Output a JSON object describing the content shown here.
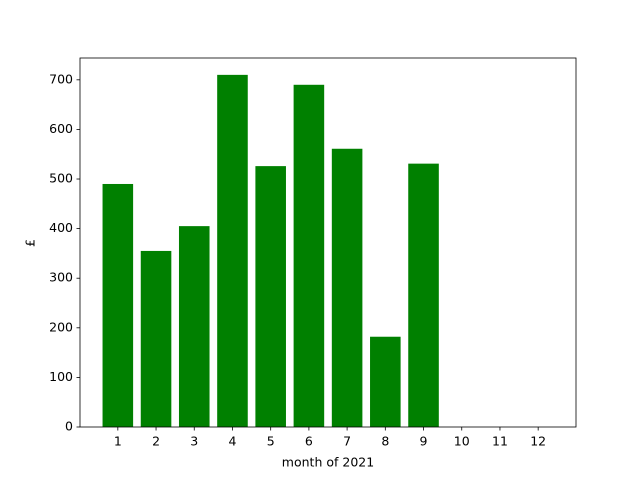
{
  "chart_data": {
    "type": "bar",
    "xlabel": "month of 2021",
    "ylabel": "£",
    "x": [
      1,
      2,
      3,
      4,
      5,
      6,
      7,
      8,
      9,
      10,
      11,
      12
    ],
    "values": [
      490,
      355,
      405,
      710,
      526,
      690,
      561,
      182,
      531,
      0,
      0,
      0
    ],
    "color": "#008000",
    "xlim": [
      0.01,
      12.99
    ],
    "xticks": [
      1,
      2,
      3,
      4,
      5,
      6,
      7,
      8,
      9,
      10,
      11,
      12
    ],
    "ylim": [
      0,
      744
    ],
    "yticks": [
      0,
      100,
      200,
      300,
      400,
      500,
      600,
      700
    ],
    "grid": false
  }
}
